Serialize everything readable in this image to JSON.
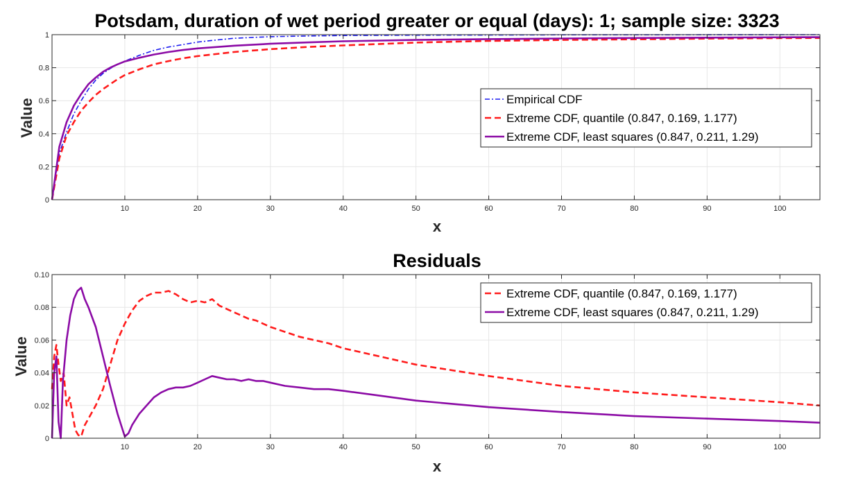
{
  "figure_title": "Potsdam, duration of wet period greater or equal (days): 1; sample size: 3323",
  "colors": {
    "empirical": "#1a1af0",
    "quantile": "#ff1a1a",
    "least_squares": "#8b0aa5",
    "grid": "#e6e6e6",
    "axis": "#262626"
  },
  "chart_data": [
    {
      "type": "line",
      "title": "",
      "xlabel": "x",
      "ylabel": "Value",
      "xlim": [
        0,
        105.5
      ],
      "ylim": [
        0,
        1
      ],
      "x_ticks": [
        10,
        20,
        30,
        40,
        50,
        60,
        70,
        80,
        90,
        100
      ],
      "y_ticks": [
        0,
        0.2,
        0.4,
        0.6,
        0.8,
        1
      ],
      "grid": true,
      "legend_position": "right",
      "series": [
        {
          "name": "Empirical CDF",
          "style": "dash-dot",
          "color": "#1a1af0",
          "x": [
            0,
            1,
            2,
            3,
            4,
            5,
            6,
            7,
            8,
            9,
            10,
            12,
            14,
            16,
            18,
            20,
            22,
            25,
            30,
            35,
            40,
            50,
            60,
            70,
            80,
            90,
            100,
            105.5
          ],
          "y": [
            0,
            0.28,
            0.41,
            0.52,
            0.6,
            0.67,
            0.725,
            0.765,
            0.795,
            0.82,
            0.84,
            0.875,
            0.905,
            0.925,
            0.94,
            0.955,
            0.965,
            0.978,
            0.988,
            0.992,
            0.995,
            0.997,
            0.998,
            0.999,
            0.999,
            0.9995,
            1.0,
            1.0
          ]
        },
        {
          "name": "Extreme CDF, quantile (0.847, 0.169, 1.177)",
          "style": "dashed",
          "color": "#ff1a1a",
          "x": [
            0,
            1,
            2,
            3,
            4,
            5,
            6,
            7,
            8,
            9,
            10,
            12,
            14,
            16,
            18,
            20,
            25,
            30,
            35,
            40,
            50,
            60,
            70,
            80,
            90,
            100,
            105.5
          ],
          "y": [
            0,
            0.25,
            0.39,
            0.47,
            0.54,
            0.59,
            0.635,
            0.67,
            0.7,
            0.73,
            0.755,
            0.79,
            0.82,
            0.84,
            0.857,
            0.87,
            0.895,
            0.912,
            0.925,
            0.935,
            0.952,
            0.962,
            0.968,
            0.972,
            0.976,
            0.979,
            0.98
          ]
        },
        {
          "name": "Extreme CDF, least squares (0.847, 0.211, 1.29)",
          "style": "solid",
          "color": "#8b0aa5",
          "x": [
            0,
            1,
            2,
            3,
            4,
            5,
            6,
            7,
            8,
            9,
            10,
            12,
            14,
            16,
            18,
            20,
            25,
            30,
            35,
            40,
            50,
            60,
            70,
            80,
            90,
            100,
            105.5
          ],
          "y": [
            0,
            0.32,
            0.47,
            0.57,
            0.64,
            0.7,
            0.74,
            0.775,
            0.8,
            0.82,
            0.838,
            0.86,
            0.88,
            0.895,
            0.907,
            0.917,
            0.933,
            0.945,
            0.953,
            0.96,
            0.968,
            0.973,
            0.977,
            0.98,
            0.982,
            0.984,
            0.985
          ]
        }
      ]
    },
    {
      "type": "line",
      "title": "Residuals",
      "xlabel": "x",
      "ylabel": "Value",
      "xlim": [
        0,
        105.5
      ],
      "ylim": [
        0,
        0.1
      ],
      "x_ticks": [
        10,
        20,
        30,
        40,
        50,
        60,
        70,
        80,
        90,
        100
      ],
      "y_ticks": [
        0,
        0.02,
        0.04,
        0.06,
        0.08,
        0.1
      ],
      "grid": true,
      "legend_position": "top-right",
      "series": [
        {
          "name": "Extreme CDF, quantile (0.847, 0.169, 1.177)",
          "style": "dashed",
          "color": "#ff1a1a",
          "x": [
            0,
            0.3,
            0.6,
            0.9,
            1.2,
            1.6,
            2.0,
            2.4,
            2.8,
            3.2,
            3.6,
            4.0,
            4.5,
            5,
            6,
            7,
            8,
            9,
            10,
            11,
            12,
            13,
            14,
            15,
            16,
            17,
            18,
            19,
            20,
            21,
            22,
            23,
            24,
            25,
            26,
            27,
            28,
            29,
            30,
            32,
            34,
            36,
            38,
            40,
            45,
            50,
            60,
            70,
            80,
            90,
            100,
            105.5
          ],
          "y": [
            0.03,
            0.05,
            0.057,
            0.045,
            0.035,
            0.04,
            0.02,
            0.025,
            0.015,
            0.005,
            0.002,
            0.001,
            0.008,
            0.012,
            0.02,
            0.03,
            0.045,
            0.06,
            0.07,
            0.078,
            0.084,
            0.087,
            0.089,
            0.089,
            0.09,
            0.088,
            0.085,
            0.083,
            0.084,
            0.083,
            0.085,
            0.081,
            0.079,
            0.077,
            0.075,
            0.073,
            0.072,
            0.07,
            0.068,
            0.065,
            0.062,
            0.06,
            0.058,
            0.055,
            0.05,
            0.045,
            0.038,
            0.032,
            0.028,
            0.025,
            0.022,
            0.02
          ]
        },
        {
          "name": "Extreme CDF, least squares (0.847, 0.211, 1.29)",
          "style": "solid",
          "color": "#8b0aa5",
          "x": [
            0,
            0.3,
            0.6,
            0.9,
            1.2,
            1.5,
            2.0,
            2.5,
            3.0,
            3.5,
            4.0,
            4.5,
            5,
            6,
            7,
            8,
            9,
            10,
            10.5,
            11,
            12,
            13,
            14,
            15,
            16,
            17,
            18,
            19,
            20,
            21,
            22,
            23,
            24,
            25,
            26,
            27,
            28,
            29,
            30,
            32,
            34,
            36,
            38,
            40,
            45,
            50,
            60,
            70,
            80,
            90,
            100,
            105.5
          ],
          "y": [
            0.0,
            0.04,
            0.05,
            0.01,
            0.0,
            0.035,
            0.06,
            0.075,
            0.085,
            0.09,
            0.092,
            0.085,
            0.08,
            0.068,
            0.05,
            0.032,
            0.015,
            0.001,
            0.003,
            0.008,
            0.015,
            0.02,
            0.025,
            0.028,
            0.03,
            0.031,
            0.031,
            0.032,
            0.034,
            0.036,
            0.038,
            0.037,
            0.036,
            0.036,
            0.035,
            0.036,
            0.035,
            0.035,
            0.034,
            0.032,
            0.031,
            0.03,
            0.03,
            0.029,
            0.026,
            0.023,
            0.019,
            0.016,
            0.0135,
            0.012,
            0.0105,
            0.0095
          ]
        }
      ]
    }
  ]
}
